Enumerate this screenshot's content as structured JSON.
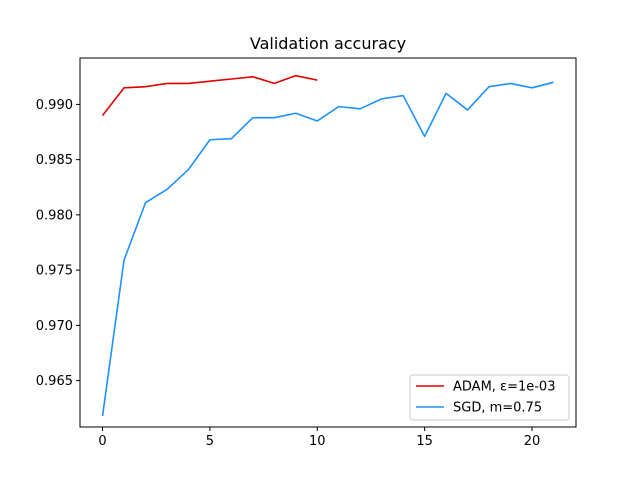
{
  "chart_data": {
    "type": "line",
    "title": "Validation accuracy",
    "xlabel": "",
    "ylabel": "",
    "xlim": [
      -1.05,
      22.05
    ],
    "ylim": [
      0.9608,
      0.9942
    ],
    "x_ticks": [
      0,
      5,
      10,
      15,
      20
    ],
    "x_tick_labels": [
      "0",
      "5",
      "10",
      "15",
      "20"
    ],
    "y_ticks": [
      0.965,
      0.97,
      0.975,
      0.98,
      0.985,
      0.99
    ],
    "y_tick_labels": [
      "0.965",
      "0.970",
      "0.975",
      "0.980",
      "0.985",
      "0.990"
    ],
    "grid": false,
    "legend_position": "lower-right",
    "series": [
      {
        "name": "ADAM, ε=1e-03",
        "color": "#e00000",
        "x": [
          0,
          1,
          2,
          3,
          4,
          5,
          6,
          7,
          8,
          9,
          10
        ],
        "values": [
          0.989,
          0.9915,
          0.9916,
          0.9919,
          0.9919,
          0.9921,
          0.9923,
          0.9925,
          0.9919,
          0.9926,
          0.9922
        ]
      },
      {
        "name": "SGD, m=0.75",
        "color": "#1e90ff",
        "x": [
          0,
          1,
          2,
          3,
          4,
          5,
          6,
          7,
          8,
          9,
          10,
          11,
          12,
          13,
          14,
          15,
          16,
          17,
          18,
          19,
          20,
          21
        ],
        "values": [
          0.9618,
          0.9759,
          0.9811,
          0.9823,
          0.9841,
          0.9868,
          0.9869,
          0.9888,
          0.9888,
          0.9892,
          0.9885,
          0.9898,
          0.9896,
          0.9905,
          0.9908,
          0.9871,
          0.991,
          0.9895,
          0.9916,
          0.9919,
          0.9915,
          0.992
        ]
      }
    ]
  }
}
